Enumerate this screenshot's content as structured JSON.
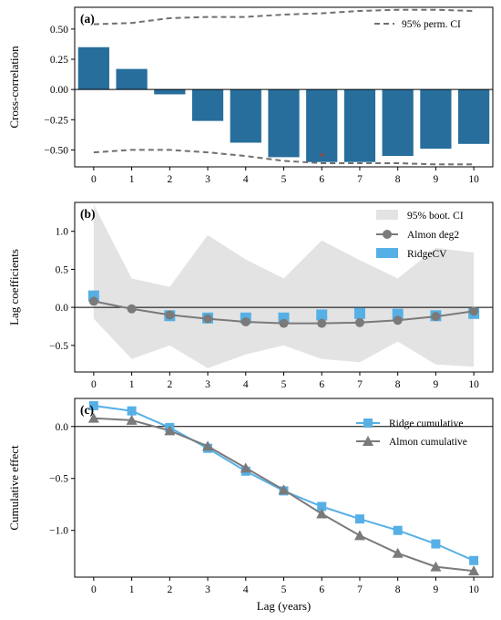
{
  "chart_data": [
    {
      "panel_label": "(a)",
      "type": "bar",
      "ylabel": "Cross-correlation",
      "xlabel": "",
      "x": [
        0,
        1,
        2,
        3,
        4,
        5,
        6,
        7,
        8,
        9,
        10
      ],
      "xlim": [
        -0.5,
        10.5
      ],
      "ylim": [
        -0.64,
        0.68
      ],
      "yticks": [
        0.5,
        0.25,
        0.0,
        -0.25,
        -0.5
      ],
      "ytick_labels": [
        "0.50",
        "0.25",
        "0.00",
        "−0.25",
        "−0.50"
      ],
      "values": [
        0.35,
        0.17,
        -0.04,
        -0.26,
        -0.44,
        -0.56,
        -0.6,
        -0.6,
        -0.55,
        -0.49,
        -0.45
      ],
      "bar_color": "#276e9c",
      "peak_marker": {
        "x": 6,
        "y": -0.55,
        "symbol": "*",
        "color": "#c0392b"
      },
      "ci_upper": [
        0.54,
        0.55,
        0.59,
        0.6,
        0.6,
        0.62,
        0.63,
        0.65,
        0.66,
        0.66,
        0.65
      ],
      "ci_lower": [
        -0.52,
        -0.5,
        -0.5,
        -0.52,
        -0.55,
        -0.59,
        -0.61,
        -0.61,
        -0.61,
        -0.62,
        -0.62
      ],
      "ci_color": "#707070",
      "legend": [
        {
          "label": "95% perm. CI",
          "style": "dashed"
        }
      ],
      "legend_position": "top-right",
      "zero_line": true
    },
    {
      "panel_label": "(b)",
      "type": "line",
      "ylabel": "Lag coefficients",
      "xlabel": "",
      "x": [
        0,
        1,
        2,
        3,
        4,
        5,
        6,
        7,
        8,
        9,
        10
      ],
      "xlim": [
        -0.5,
        10.5
      ],
      "ylim": [
        -0.85,
        1.38
      ],
      "yticks": [
        1.0,
        0.5,
        0.0,
        -0.5
      ],
      "ytick_labels": [
        "1.0",
        "0.5",
        "0.0",
        "−0.5"
      ],
      "band_upper": [
        1.35,
        0.38,
        0.27,
        0.95,
        0.63,
        0.38,
        0.88,
        0.62,
        0.38,
        0.78,
        0.72
      ],
      "band_lower": [
        -0.15,
        -0.68,
        -0.5,
        -0.8,
        -0.62,
        -0.5,
        -0.68,
        -0.72,
        -0.45,
        -0.75,
        -0.78
      ],
      "band_color": "#e3e3e3",
      "almon": [
        0.08,
        -0.02,
        -0.1,
        -0.15,
        -0.19,
        -0.21,
        -0.21,
        -0.2,
        -0.17,
        -0.12,
        -0.05
      ],
      "almon_color": "#7a7a7a",
      "ridge": [
        0.15,
        null,
        -0.11,
        -0.14,
        -0.14,
        -0.14,
        -0.1,
        -0.08,
        -0.09,
        -0.11,
        -0.08
      ],
      "ridge_color": "#56b0e6",
      "legend": [
        {
          "label": "95% boot. CI",
          "style": "patch"
        },
        {
          "label": "Almon deg2",
          "style": "line-marker"
        },
        {
          "label": "RidgeCV",
          "style": "patch"
        }
      ],
      "legend_position": "top-right",
      "zero_line": true
    },
    {
      "panel_label": "(c)",
      "type": "line",
      "ylabel": "Cumulative effect",
      "xlabel": "Lag (years)",
      "x": [
        0,
        1,
        2,
        3,
        4,
        5,
        6,
        7,
        8,
        9,
        10
      ],
      "xtick_labels": [
        "0",
        "1",
        "2",
        "3",
        "4",
        "5",
        "6",
        "7",
        "8",
        "9",
        "10"
      ],
      "xlim": [
        -0.5,
        10.5
      ],
      "ylim": [
        -1.45,
        0.27
      ],
      "yticks": [
        0.0,
        -0.5,
        -1.0
      ],
      "ytick_labels": [
        "0.0",
        "−0.5",
        "−1.0"
      ],
      "series": [
        {
          "name": "Ridge cumulative",
          "values": [
            0.2,
            0.15,
            -0.01,
            -0.21,
            -0.43,
            -0.62,
            -0.77,
            -0.89,
            -1.0,
            -1.13,
            -1.29
          ],
          "color": "#56b0e6",
          "marker": "square"
        },
        {
          "name": "Almon cumulative",
          "values": [
            0.08,
            0.06,
            -0.04,
            -0.19,
            -0.4,
            -0.61,
            -0.84,
            -1.05,
            -1.22,
            -1.35,
            -1.39
          ],
          "color": "#7a7a7a",
          "marker": "triangle"
        }
      ],
      "legend_position": "top-right",
      "zero_line": true
    }
  ]
}
